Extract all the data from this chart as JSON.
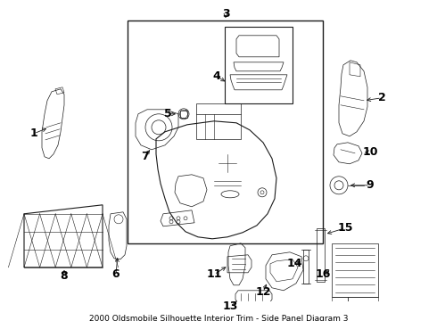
{
  "title": "2000 Oldsmobile Silhouette Interior Trim - Side Panel Diagram 3",
  "bg_color": "#ffffff",
  "line_color": "#1a1a1a",
  "label_color": "#000000",
  "font_size_labels": 9,
  "font_size_title": 6.5,
  "figsize": [
    4.9,
    3.6
  ],
  "dpi": 100
}
